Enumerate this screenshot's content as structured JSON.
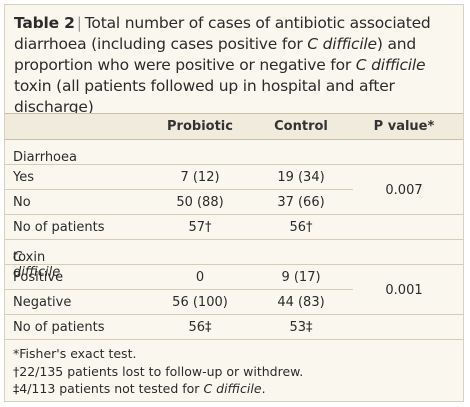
{
  "title": {
    "label": "Table 2",
    "segments": [
      "Total number of cases of antibiotic associated diarrhoea (including cases positive for ",
      {
        "text": "C difficile",
        "italic": true
      },
      ") and proportion who were positive or negative for ",
      {
        "text": "C difficile",
        "italic": true
      },
      " toxin (all patients followed up in hospital and after discharge)"
    ]
  },
  "table": {
    "header": [
      "Probiotic",
      "Control",
      "P value*"
    ],
    "sections": [
      {
        "title": [
          "Diarrhoea"
        ],
        "p_value": "0.007",
        "rows": [
          [
            "Yes",
            "7 (12)",
            "19 (34)"
          ],
          [
            "No",
            "50 (88)",
            "37 (66)"
          ],
          [
            "No of patients",
            "57†",
            "56†"
          ]
        ]
      },
      {
        "title": [
          {
            "text": "C difficile",
            "italic": true
          },
          " toxin"
        ],
        "p_value": "0.001",
        "rows": [
          [
            "Positive",
            "0",
            "9 (17)"
          ],
          [
            "Negative",
            "56 (100)",
            "44 (83)"
          ],
          [
            "No of patients",
            "56‡",
            "53‡"
          ]
        ]
      }
    ]
  },
  "footnotes": [
    [
      "*Fisher's exact test."
    ],
    [
      "†22/135 patients lost to follow-up or withdrew."
    ],
    [
      "‡4/113 patients not tested for ",
      {
        "text": "C difficile",
        "italic": true
      },
      "."
    ]
  ]
}
